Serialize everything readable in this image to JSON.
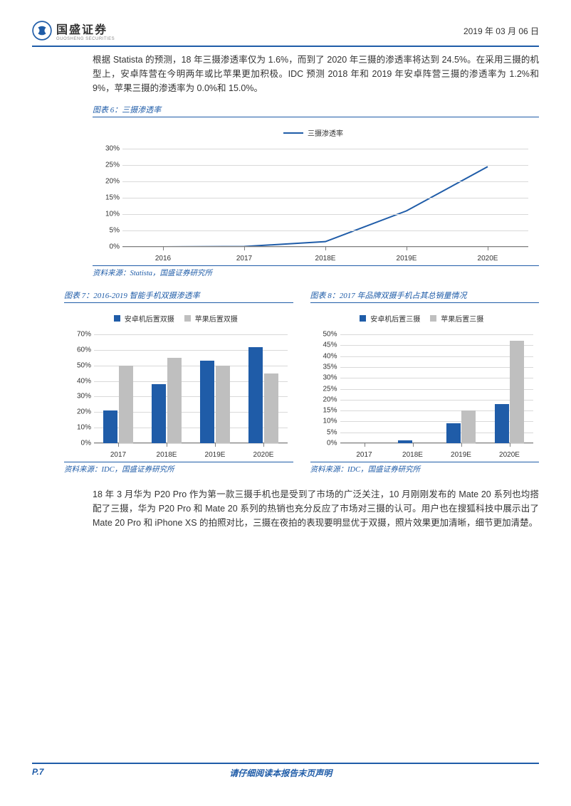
{
  "header": {
    "logo_cn": "国盛证券",
    "logo_en": "GUOSHENG SECURITIES",
    "date": "2019 年 03 月 06 日"
  },
  "para1": "根据 Statista 的预测，18 年三摄渗透率仅为 1.6%，而到了 2020 年三摄的渗透率将达到 24.5%。在采用三摄的机型上，安卓阵营在今明两年或比苹果更加积极。IDC 预测 2018 年和 2019 年安卓阵营三摄的渗透率为 1.2%和 9%，苹果三摄的渗透率为 0.0%和 15.0%。",
  "chart6": {
    "title": "图表 6：三摄渗透率",
    "legend": "三摄渗透率",
    "type": "line",
    "categories": [
      "2016",
      "2017",
      "2018E",
      "2019E",
      "2020E"
    ],
    "values": [
      0.0,
      0.1,
      1.6,
      11.0,
      24.5
    ],
    "line_color": "#1f5ca8",
    "line_width": 2,
    "ylim": [
      0,
      30
    ],
    "ytick_step": 5,
    "ytick_format": "percent",
    "grid_color": "#d9d9d9",
    "background": "#ffffff",
    "source": "资料来源：Statista，国盛证券研究所"
  },
  "chart7": {
    "title": "图表 7：2016-2019 智能手机双摄渗透率",
    "type": "bar",
    "categories": [
      "2017",
      "2018E",
      "2019E",
      "2020E"
    ],
    "series": [
      {
        "name": "安卓机后置双摄",
        "values": [
          21,
          38,
          53,
          62
        ],
        "color": "#1f5ca8"
      },
      {
        "name": "苹果后置双摄",
        "values": [
          50,
          55,
          50,
          45
        ],
        "color": "#bfbfbf"
      }
    ],
    "ylim": [
      0,
      70
    ],
    "ytick_step": 10,
    "ytick_format": "percent",
    "bar_width": 0.3,
    "grid_color": "#d9d9d9",
    "source": "资料来源：IDC，国盛证券研究所"
  },
  "chart8": {
    "title": "图表 8：2017 年品牌双摄手机占其总销量情况",
    "type": "bar",
    "categories": [
      "2017",
      "2018E",
      "2019E",
      "2020E"
    ],
    "series": [
      {
        "name": "安卓机后置三摄",
        "values": [
          0,
          1.2,
          9,
          18
        ],
        "color": "#1f5ca8"
      },
      {
        "name": "苹果后置三摄",
        "values": [
          0,
          0,
          15,
          47
        ],
        "color": "#bfbfbf"
      }
    ],
    "ylim": [
      0,
      50
    ],
    "ytick_step": 5,
    "ytick_format": "percent",
    "bar_width": 0.3,
    "grid_color": "#d9d9d9",
    "source": "资料来源：IDC，国盛证券研究所"
  },
  "para2": "18 年 3 月华为 P20 Pro 作为第一款三摄手机也是受到了市场的广泛关注，10 月刚刚发布的 Mate 20 系列也均搭配了三摄，华为 P20 Pro 和 Mate 20 系列的热销也充分反应了市场对三摄的认可。用户也在搜狐科技中展示出了 Mate 20 Pro 和 iPhone XS 的拍照对比，三摄在夜拍的表现要明显优于双摄，照片效果更加清晰，细节更加清楚。",
  "footer": {
    "page": "P.7",
    "note": "请仔细阅读本报告末页声明"
  },
  "colors": {
    "brand": "#1f5ca8",
    "grey_bar": "#bfbfbf",
    "grid": "#d9d9d9",
    "axis": "#808080",
    "text": "#333333"
  }
}
